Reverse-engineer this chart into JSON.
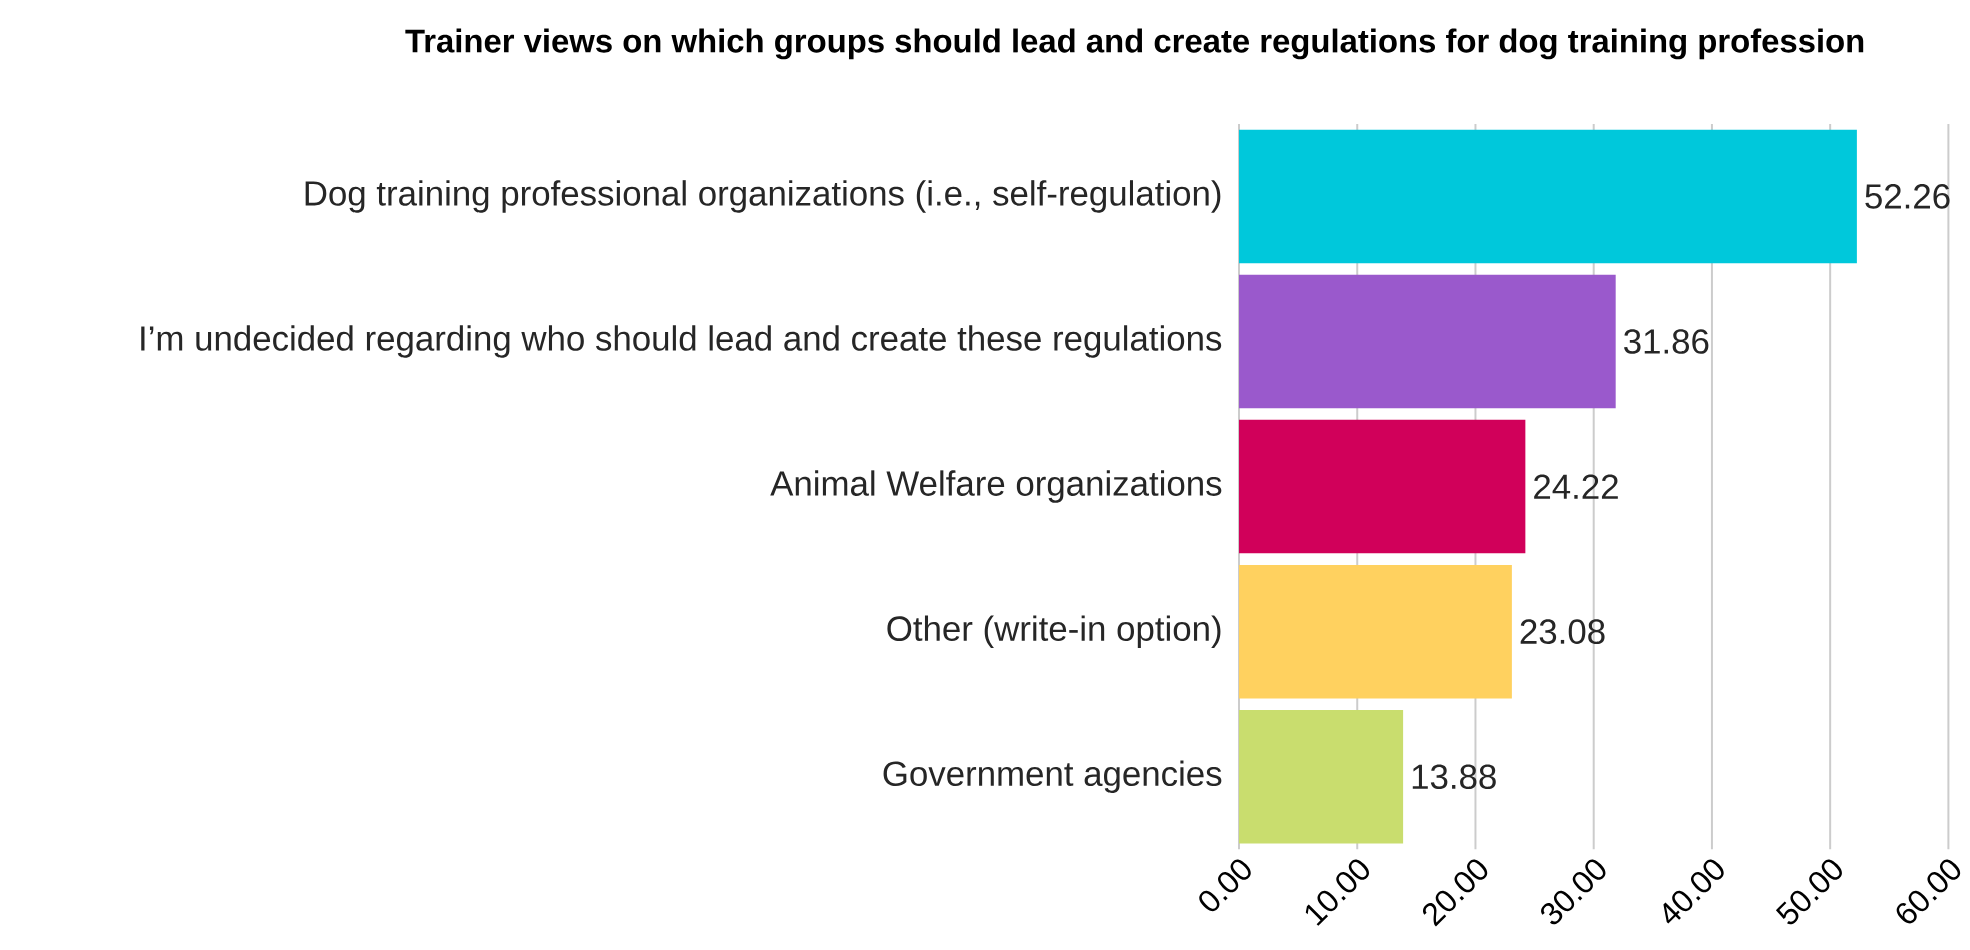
{
  "chart_data": {
    "type": "bar",
    "orientation": "horizontal",
    "title": "Trainer views on which groups should lead and create regulations for dog training profession",
    "categories": [
      "Dog training professional organizations (i.e., self-regulation)",
      "I’m undecided regarding who should lead and create these regulations",
      "Animal Welfare organizations",
      "Other (write-in option)",
      "Government agencies"
    ],
    "values": [
      52.26,
      31.86,
      24.22,
      23.08,
      13.88
    ],
    "colors": [
      "#00c8db",
      "#9a59cc",
      "#d1005a",
      "#ffd15f",
      "#c9dd6e"
    ],
    "xlim": [
      0,
      60
    ],
    "xticks": [
      {
        "value": 0,
        "label": "0.00"
      },
      {
        "value": 10,
        "label": "10.00"
      },
      {
        "value": 20,
        "label": "20.00"
      },
      {
        "value": 30,
        "label": "30.00"
      },
      {
        "value": 40,
        "label": "40.00"
      },
      {
        "value": 50,
        "label": "50.00"
      },
      {
        "value": 60,
        "label": "60.00"
      }
    ],
    "grid": "x",
    "data_labels": true
  }
}
